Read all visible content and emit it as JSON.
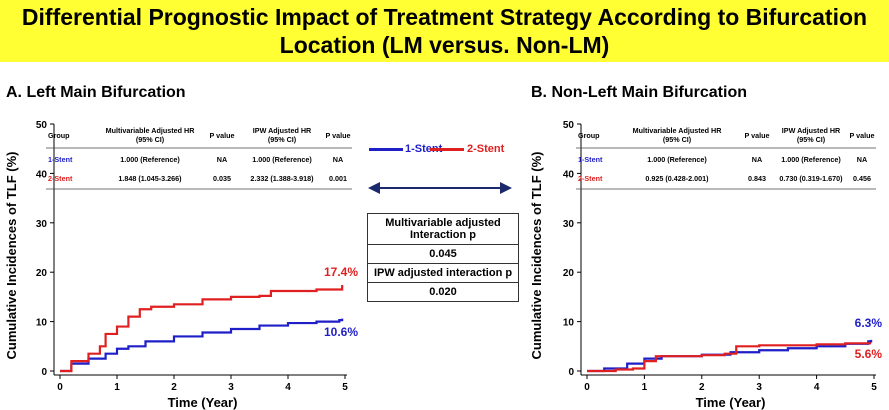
{
  "title": "Differential Prognostic Impact of Treatment Strategy According to Bifurcation Location (LM versus. Non-LM)",
  "colors": {
    "banner": "#FFFF33",
    "stent1": "#1F1FC8",
    "stent2": "#E02020",
    "arrow": "#1A2A6C"
  },
  "legend": {
    "stent1": "1-Stent",
    "stent2": "2-Stent"
  },
  "center_box": {
    "row1": "Multivariable adjusted Interaction p",
    "row2": "0.045",
    "row3": "IPW adjusted interaction p",
    "row4": "0.020"
  },
  "table_headers": {
    "group": "Group",
    "mv_hr": "Multivariable Adjusted HR (95% CI)",
    "p1": "P value",
    "ipw_hr": "IPW Adjusted HR (95% CI)",
    "p2": "P value"
  },
  "panelA": {
    "title": "A. Left Main Bifurcation",
    "rows": [
      {
        "group": "1-Stent",
        "mv_hr": "1.000 (Reference)",
        "p1": "NA",
        "ipw_hr": "1.000 (Reference)",
        "p2": "NA"
      },
      {
        "group": "2-Stent",
        "mv_hr": "1.848 (1.045-3.266)",
        "p1": "0.035",
        "ipw_hr": "2.332 (1.388-3.918)",
        "p2": "0.001"
      }
    ],
    "end_label_2stent": "17.4%",
    "end_label_1stent": "10.6%"
  },
  "panelB": {
    "title": "B. Non-Left Main Bifurcation",
    "rows": [
      {
        "group": "1-Stent",
        "mv_hr": "1.000 (Reference)",
        "p1": "NA",
        "ipw_hr": "1.000 (Reference)",
        "p2": "NA"
      },
      {
        "group": "2-Stent",
        "mv_hr": "0.925 (0.428-2.001)",
        "p1": "0.843",
        "ipw_hr": "0.730 (0.319-1.670)",
        "p2": "0.456"
      }
    ],
    "end_label_1stent": "6.3%",
    "end_label_2stent": "5.6%"
  },
  "chart_data": [
    {
      "type": "line",
      "title": "A. Left Main Bifurcation",
      "xlabel": "Time (Year)",
      "ylabel": "Cumulative Incidences of TLF (%)",
      "xlim": [
        0,
        5
      ],
      "ylim": [
        0,
        50
      ],
      "xticks": [
        0,
        1,
        2,
        3,
        4,
        5
      ],
      "yticks": [
        0,
        10,
        20,
        30,
        40,
        50
      ],
      "series": [
        {
          "name": "1-Stent",
          "x": [
            0,
            0.2,
            0.5,
            0.8,
            1.0,
            1.2,
            1.5,
            2.0,
            2.5,
            3.0,
            3.5,
            4.0,
            4.5,
            4.9,
            4.95
          ],
          "y": [
            0,
            1.5,
            2.5,
            3.5,
            4.5,
            5.0,
            6.0,
            7.0,
            7.8,
            8.5,
            9.2,
            9.7,
            10.0,
            10.3,
            10.6
          ]
        },
        {
          "name": "2-Stent",
          "x": [
            0,
            0.2,
            0.5,
            0.7,
            0.8,
            1.0,
            1.2,
            1.4,
            1.6,
            2.0,
            2.5,
            3.0,
            3.5,
            3.7,
            4.5,
            4.9,
            4.95
          ],
          "y": [
            0,
            2.0,
            3.5,
            5.0,
            7.5,
            9.0,
            11.0,
            12.5,
            13.0,
            13.5,
            14.5,
            15.0,
            15.2,
            16.2,
            16.5,
            16.5,
            17.4
          ]
        }
      ]
    },
    {
      "type": "line",
      "title": "B. Non-Left Main Bifurcation",
      "xlabel": "Time (Year)",
      "ylabel": "Cumulative Incidences of TLF (%)",
      "xlim": [
        0,
        5
      ],
      "ylim": [
        0,
        50
      ],
      "xticks": [
        0,
        1,
        2,
        3,
        4,
        5
      ],
      "yticks": [
        0,
        10,
        20,
        30,
        40,
        50
      ],
      "series": [
        {
          "name": "1-Stent",
          "x": [
            0,
            0.3,
            0.7,
            1.0,
            1.3,
            1.7,
            2.0,
            2.5,
            3.0,
            3.5,
            4.0,
            4.5,
            4.9,
            4.95
          ],
          "y": [
            0,
            0.5,
            1.5,
            2.5,
            3.0,
            3.0,
            3.3,
            3.8,
            4.2,
            4.6,
            5.0,
            5.5,
            6.0,
            6.3
          ]
        },
        {
          "name": "2-Stent",
          "x": [
            0,
            0.5,
            0.8,
            1.0,
            1.2,
            2.0,
            2.4,
            2.6,
            3.0,
            4.0,
            4.5,
            4.95
          ],
          "y": [
            0,
            0.3,
            0.5,
            2.0,
            3.0,
            3.2,
            3.5,
            5.0,
            5.2,
            5.4,
            5.6,
            5.6
          ]
        }
      ]
    }
  ]
}
